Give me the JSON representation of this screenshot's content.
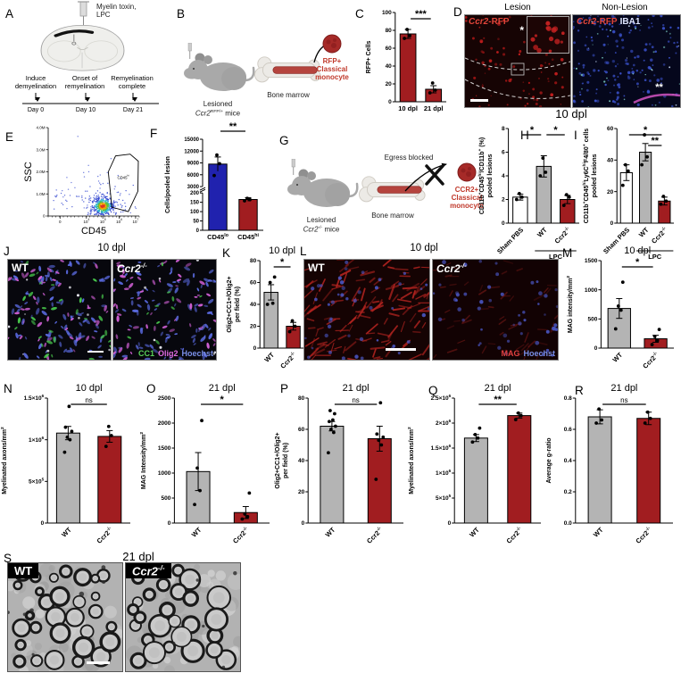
{
  "letters": {
    "A": "A",
    "B": "B",
    "C": "C",
    "D": "D",
    "E": "E",
    "F": "F",
    "G": "G",
    "H": "H",
    "I": "I",
    "J": "J",
    "K": "K",
    "L": "L",
    "M": "M",
    "N": "N",
    "O": "O",
    "P": "P",
    "Q": "Q",
    "R": "R",
    "S": "S"
  },
  "colors": {
    "bar_red": "#a11d20",
    "bar_blue": "#2022ae",
    "bar_gray": "#b4b4b4",
    "gene_red": "#c0392b",
    "iba1_blue": "#dfe6ff"
  },
  "panelA": {
    "injection_line1": "Myelin toxin,",
    "injection_line2": "LPC",
    "timeline": [
      {
        "l1": "Induce",
        "l2": "demyelination",
        "day": "Day 0"
      },
      {
        "l1": "Onset of",
        "l2": "remyelination",
        "day": "Day 10"
      },
      {
        "l1": "Remyelination",
        "l2": "complete",
        "day": "Day 21"
      }
    ]
  },
  "panelB": {
    "caption1": "Lesioned",
    "gene": "Ccr2",
    "gene_sup": "RFP/+",
    "caption2_rest": " mice",
    "bone": "Bone marrow",
    "mono1": "RFP+",
    "mono2": "Classical",
    "mono3": "monocyte"
  },
  "panelD": {
    "title_left": "Lesion",
    "title_right": "Non-Lesion",
    "gene": "Ccr2",
    "marker": "-RFP",
    "iba1": "IBA1",
    "star": "*",
    "stars": "**",
    "caption": "10 dpl"
  },
  "panelG": {
    "caption1": "Lesioned",
    "gene": "Ccr2",
    "gene_sup": "-/-",
    "caption2_rest": " mice",
    "bone": "Bone marrow",
    "egress": "Egress blocked",
    "mono1": "CCR2+",
    "mono2": "Classical",
    "mono3": "monocyte"
  },
  "panelJ": {
    "title": "10 dpl",
    "wt": "WT",
    "gene": "Ccr2",
    "gene_sup": "-/-",
    "legend": [
      {
        "text": "CC1",
        "color": "#5ad15a"
      },
      {
        "text": "Olig2",
        "color": "#e06ae0"
      },
      {
        "text": "Hoechst",
        "color": "#7a8fe8"
      }
    ]
  },
  "panelL": {
    "title": "10 dpl",
    "wt": "WT",
    "gene": "Ccr2",
    "gene_sup": "-/-",
    "legend": [
      {
        "text": "MAG",
        "color": "#e04040"
      },
      {
        "text": "Hoechst",
        "color": "#7a8fe8"
      }
    ]
  },
  "panelS": {
    "title": "21 dpl",
    "wt": "WT",
    "gene": "Ccr2",
    "gene_sup": "-/-"
  },
  "chart_data": [
    {
      "panel": "C",
      "type": "bar",
      "title": "",
      "ylabel": "RFP+ Cells",
      "ylim": [
        0,
        100
      ],
      "yticks": [
        0,
        20,
        40,
        60,
        80,
        100
      ],
      "categories": [
        "10 dpl",
        "21 dpl"
      ],
      "rotate_xlabels": false,
      "values": [
        76,
        14
      ],
      "errors": [
        5,
        4
      ],
      "bar_colors": [
        "#a11d20",
        "#a11d20"
      ],
      "dots": [
        [
          71,
          74,
          81
        ],
        [
          10,
          13,
          21
        ]
      ],
      "sig": [
        {
          "from": 0,
          "to": 1,
          "label": "***",
          "level": 0
        }
      ]
    },
    {
      "panel": "E",
      "type": "flow",
      "xlabel": "CD45",
      "ylabel": "SSC",
      "gate_label": "CD45^{hi}",
      "ytick_labels": [
        "0",
        "1.0M",
        "2.0M",
        "3.0M",
        "4.0M"
      ],
      "xtick_labels": [
        "0",
        "10^{4}",
        "10^{5}",
        "10^{6}",
        "10^{7}"
      ]
    },
    {
      "panel": "F",
      "type": "bar-broken",
      "ylabel": "Cells/pooled lesion",
      "segments": {
        "bottom": {
          "lim": [
            0,
            200
          ],
          "ticks": [
            0,
            50,
            100,
            150,
            200
          ]
        },
        "top": {
          "lim": [
            3000,
            15000
          ],
          "ticks": [
            3000,
            6000,
            9000,
            12000,
            15000
          ]
        }
      },
      "categories": [
        "CD45^{lo}",
        "CD45^{hi}"
      ],
      "values": [
        8700,
        165
      ],
      "errors": [
        1800,
        10
      ],
      "bar_colors": [
        "#2022ae",
        "#a11d20"
      ],
      "dots": [
        [
          5800,
          8800,
          11000
        ],
        [
          158,
          164,
          171
        ]
      ],
      "sig": [
        {
          "from": 0,
          "to": 1,
          "label": "**",
          "level": 0
        }
      ]
    },
    {
      "panel": "H",
      "type": "bar",
      "title": "",
      "ylabel": "CD11b^{+}CD45^{hi}/CD11b^{+} (%)|pooled lesions",
      "ylim": [
        0,
        8
      ],
      "yticks": [
        0,
        2,
        4,
        6,
        8
      ],
      "categories": [
        "Sham PBS",
        "WT",
        "Ccr2^{-/-}"
      ],
      "rotate_xlabels": true,
      "values": [
        2.2,
        4.8,
        2.0
      ],
      "errors": [
        0.25,
        0.9,
        0.35
      ],
      "bar_colors": [
        "#ffffff",
        "#b4b4b4",
        "#a11d20"
      ],
      "dots": [
        [
          2.0,
          2.2,
          2.5
        ],
        [
          4.0,
          4.3,
          5.5
        ],
        [
          1.5,
          2.2,
          2.4
        ]
      ],
      "sig": [
        {
          "from": 0,
          "to": 1,
          "label": "*",
          "level": 0
        },
        {
          "from": 1,
          "to": 2,
          "label": "*",
          "level": 0
        }
      ],
      "group_bracket": {
        "from": 1,
        "to": 2,
        "label": "LPC"
      }
    },
    {
      "panel": "I",
      "type": "bar",
      "title": "",
      "ylabel": "CD11b^{+}CD45^{hi}Ly6C^{hi}F4/80^{+} cells|pooled lesions",
      "ylim": [
        0,
        60
      ],
      "yticks": [
        0,
        20,
        40,
        60
      ],
      "categories": [
        "Sham PBS",
        "WT",
        "Ccr2^{-/-}"
      ],
      "rotate_xlabels": true,
      "values": [
        32,
        45,
        14
      ],
      "errors": [
        5,
        5.5,
        2.5
      ],
      "bar_colors": [
        "#ffffff",
        "#b4b4b4",
        "#a11d20"
      ],
      "dots": [
        [
          24,
          33,
          37
        ],
        [
          37,
          42,
          56
        ],
        [
          12,
          14,
          17
        ]
      ],
      "sig": [
        {
          "from": 0,
          "to": 2,
          "label": "*",
          "level": 0
        },
        {
          "from": 1,
          "to": 2,
          "label": "**",
          "level": 1
        }
      ],
      "group_bracket": {
        "from": 1,
        "to": 2,
        "label": "LPC"
      }
    },
    {
      "panel": "K",
      "type": "bar",
      "title": "10 dpl",
      "ylabel": "Olig2+CC1+/Olig2+|per field (%)",
      "ylim": [
        0,
        80
      ],
      "yticks": [
        0,
        20,
        40,
        60,
        80
      ],
      "categories": [
        "WT",
        "Ccr2^{-/-}"
      ],
      "rotate_xlabels": true,
      "values": [
        51,
        20
      ],
      "errors": [
        7,
        3.5
      ],
      "bar_colors": [
        "#b4b4b4",
        "#a11d20"
      ],
      "dots": [
        [
          40,
          41,
          60,
          65
        ],
        [
          15,
          20,
          25
        ]
      ],
      "sig": [
        {
          "from": 0,
          "to": 1,
          "label": "*",
          "level": 0
        }
      ]
    },
    {
      "panel": "M",
      "type": "bar",
      "title": "10 dpl",
      "ylabel": "MAG intensity/mm^{2}",
      "ylim": [
        0,
        1500
      ],
      "yticks": [
        0,
        500,
        1000,
        1500
      ],
      "categories": [
        "WT",
        "Ccr2^{-/-}"
      ],
      "rotate_xlabels": true,
      "values": [
        680,
        160
      ],
      "errors": [
        170,
        60
      ],
      "bar_colors": [
        "#b4b4b4",
        "#a11d20"
      ],
      "dots": [
        [
          330,
          650,
          720,
          1130
        ],
        [
          60,
          130,
          200,
          320
        ]
      ],
      "sig": [
        {
          "from": 0,
          "to": 1,
          "label": "*",
          "level": 0
        }
      ]
    },
    {
      "panel": "N",
      "type": "bar",
      "title": "10 dpl",
      "ylabel": "Myelinated axons/mm^{2}",
      "ylim": [
        0,
        1500000
      ],
      "yticks": [
        0,
        500000,
        1000000,
        1500000
      ],
      "ytick_labels": [
        "0",
        "5×10^{5}",
        "1×10^{6}",
        "1.5×10^{6}"
      ],
      "categories": [
        "WT",
        "Ccr2^{-/-}"
      ],
      "rotate_xlabels": true,
      "values": [
        1080000,
        1040000
      ],
      "errors": [
        80000,
        70000
      ],
      "bar_colors": [
        "#b4b4b4",
        "#a11d20"
      ],
      "dots": [
        [
          850000,
          1000000,
          1030000,
          1100000,
          1150000,
          1400000
        ],
        [
          920000,
          1050000,
          1160000
        ]
      ],
      "sig": [
        {
          "from": 0,
          "to": 1,
          "label": "ns",
          "level": 0
        }
      ]
    },
    {
      "panel": "O",
      "type": "bar",
      "title": "21 dpl",
      "ylabel": "MAG Intensity/mm^{2}",
      "ylim": [
        0,
        2500
      ],
      "yticks": [
        0,
        500,
        1000,
        1500,
        2000,
        2500
      ],
      "categories": [
        "WT",
        "Ccr2^{-/-}"
      ],
      "rotate_xlabels": true,
      "values": [
        1030,
        210
      ],
      "errors": [
        380,
        120
      ],
      "bar_colors": [
        "#b4b4b4",
        "#a11d20"
      ],
      "dots": [
        [
          370,
          650,
          1100,
          2050
        ],
        [
          80,
          130,
          180,
          600
        ]
      ],
      "sig": [
        {
          "from": 0,
          "to": 1,
          "label": "*",
          "level": 0
        }
      ]
    },
    {
      "panel": "P",
      "type": "bar",
      "title": "21 dpl",
      "ylabel": "Olig2+CC1+/Olig2+|per field (%)",
      "ylim": [
        0,
        80
      ],
      "yticks": [
        0,
        20,
        40,
        60,
        80
      ],
      "categories": [
        "WT",
        "Ccr2^{-/-}"
      ],
      "rotate_xlabels": true,
      "values": [
        62,
        54
      ],
      "errors": [
        3,
        8
      ],
      "bar_colors": [
        "#b4b4b4",
        "#a11d20"
      ],
      "dots": [
        [
          45,
          58,
          60,
          62,
          65,
          66,
          70,
          72
        ],
        [
          28,
          50,
          53,
          55,
          57,
          77
        ]
      ],
      "sig": [
        {
          "from": 0,
          "to": 1,
          "label": "ns",
          "level": 0
        }
      ]
    },
    {
      "panel": "Q",
      "type": "bar",
      "title": "21 dpl",
      "ylabel": "Myelinated axons/mm^{2}",
      "ylim": [
        0,
        2500000
      ],
      "yticks": [
        0,
        500000,
        1000000,
        1500000,
        2000000,
        2500000
      ],
      "ytick_labels": [
        "0",
        "5×10^{5}",
        "1×10^{6}",
        "1.5×10^{6}",
        "2×10^{6}",
        "2.5×10^{6}"
      ],
      "categories": [
        "WT",
        "Ccr2^{-/-}"
      ],
      "rotate_xlabels": true,
      "values": [
        1700000,
        2150000
      ],
      "errors": [
        70000,
        50000
      ],
      "bar_colors": [
        "#b4b4b4",
        "#a11d20"
      ],
      "dots": [
        [
          1620000,
          1700000,
          1770000,
          1900000
        ],
        [
          2070000,
          2150000,
          2200000
        ]
      ],
      "sig": [
        {
          "from": 0,
          "to": 1,
          "label": "**",
          "level": 0
        }
      ]
    },
    {
      "panel": "R",
      "type": "bar",
      "title": "21 dpl",
      "ylabel": "Average g-ratio",
      "ylim": [
        0,
        0.8
      ],
      "yticks": [
        0,
        0.2,
        0.4,
        0.6,
        0.8
      ],
      "ytick_labels": [
        "0.0",
        "0.2",
        "0.4",
        "0.6",
        "0.8"
      ],
      "categories": [
        "WT",
        "Ccr2^{-/-}"
      ],
      "rotate_xlabels": true,
      "values": [
        0.68,
        0.67
      ],
      "errors": [
        0.045,
        0.04
      ],
      "bar_colors": [
        "#b4b4b4",
        "#a11d20"
      ],
      "dots": [
        [
          0.64,
          0.66,
          0.73
        ],
        [
          0.64,
          0.67,
          0.71
        ]
      ],
      "sig": [
        {
          "from": 0,
          "to": 1,
          "label": "ns",
          "level": 0
        }
      ]
    }
  ]
}
